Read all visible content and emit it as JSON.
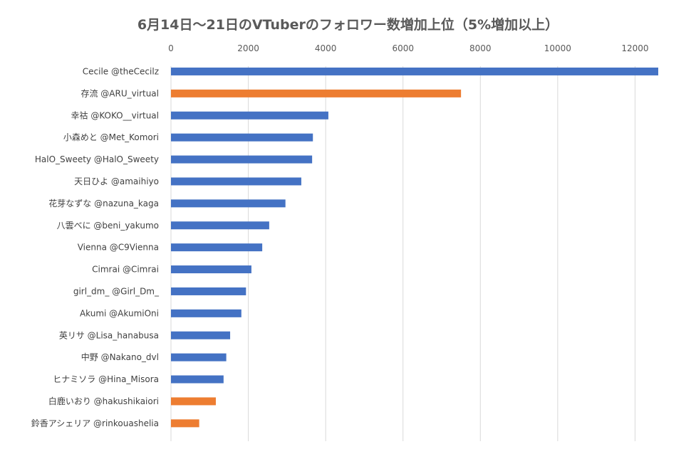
{
  "chart_data": {
    "type": "bar",
    "orientation": "horizontal",
    "title": "6月14日〜21日のVTuberのフォロワー数増加上位（5%増加以上）",
    "xlabel": "",
    "ylabel": "",
    "xlim": [
      0,
      12600
    ],
    "x_ticks": [
      0,
      2000,
      4000,
      6000,
      8000,
      10000,
      12000
    ],
    "x_tick_labels": [
      "0",
      "2000",
      "4000",
      "6000",
      "8000",
      "10000",
      "12000"
    ],
    "x_axis_position": "top",
    "grid": true,
    "legend": "none",
    "colors": {
      "blue": "#4472C4",
      "orange": "#ED7D31",
      "grid": "#D9D9D9"
    },
    "categories": [
      "Cecile @theCecilz",
      "存流 @ARU_virtual",
      "幸祜 @KOKO__virtual",
      "小森めと @Met_Komori",
      "HalO_Sweety @HalO_Sweety",
      "天日ひよ @amaihiyo",
      "花芽なずな @nazuna_kaga",
      "八雲べに @beni_yakumo",
      "Vienna @C9Vienna",
      "Cimrai @Cimrai",
      "girl_dm_ @Girl_Dm_",
      "Akumi @AkumiOni",
      "英リサ @Lisa_hanabusa",
      "中野 @Nakano_dvl",
      "ヒナミソラ @Hina_Misora",
      "白鹿いおり @hakushikaiori",
      "鈴香アシェリア @rinkouashelia"
    ],
    "values": [
      12600,
      7500,
      4070,
      3670,
      3650,
      3370,
      2960,
      2540,
      2360,
      2080,
      1940,
      1820,
      1530,
      1430,
      1360,
      1160,
      730
    ],
    "bar_colors": [
      "blue",
      "orange",
      "blue",
      "blue",
      "blue",
      "blue",
      "blue",
      "blue",
      "blue",
      "blue",
      "blue",
      "blue",
      "blue",
      "blue",
      "blue",
      "orange",
      "orange"
    ]
  }
}
